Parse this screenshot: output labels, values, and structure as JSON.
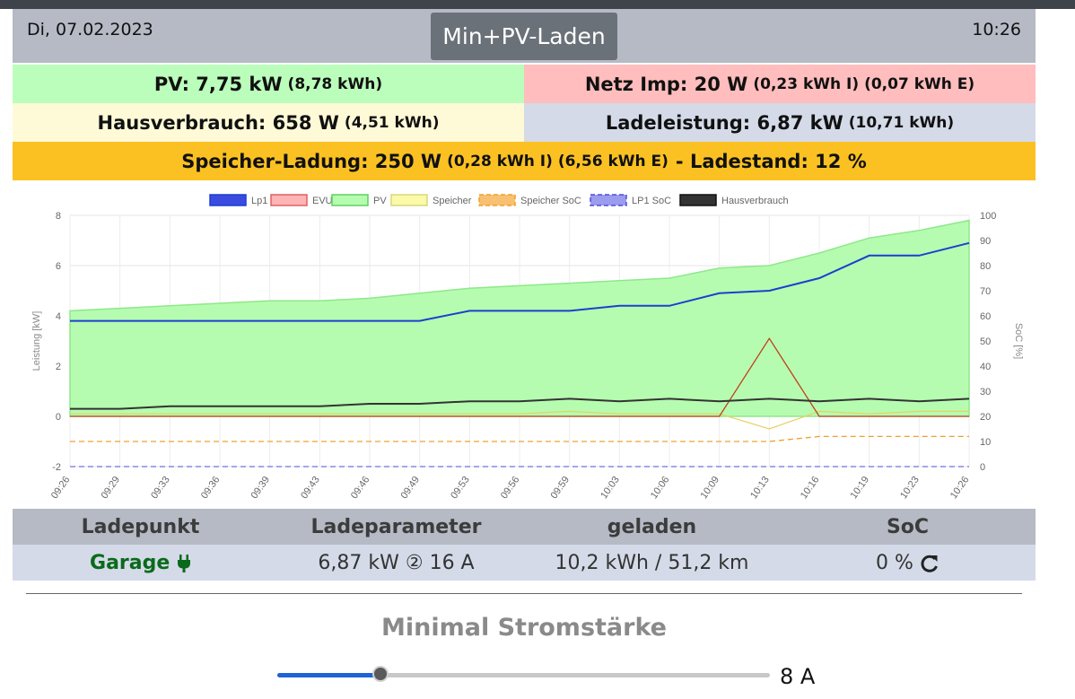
{
  "header": {
    "date": "Di, 07.02.2023",
    "time": "10:26",
    "mode_button": "Min+PV-Laden"
  },
  "summary": {
    "pv_label": "PV: 7,75 kW",
    "pv_energy": "(8,78 kWh)",
    "netz_label": "Netz Imp: 20 W",
    "netz_energy": "(0,23 kWh I) (0,07 kWh E)",
    "haus_label": "Hausverbrauch: 658 W",
    "haus_energy": "(4,51 kWh)",
    "lade_label": "Ladeleistung: 6,87 kW",
    "lade_energy": "(10,71 kWh)",
    "speicher_label": "Speicher-Ladung: 250 W",
    "speicher_energy": "(0,28 kWh I) (6,56 kWh E)",
    "ladestand_label": "- Ladestand: 12 %"
  },
  "colors": {
    "pv": "#bbfebb",
    "netz": "#ffbdbd",
    "haus": "#fefad7",
    "lade": "#d4dae8",
    "speicher": "#fbc122",
    "header": "#b5bac5"
  },
  "chart_data": {
    "type": "line",
    "ylabel": "Leistung [kW]",
    "y2label": "SoC [%]",
    "ylim": [
      -2,
      8
    ],
    "y2lim": [
      0,
      100
    ],
    "yticks": [
      "8",
      "6",
      "4",
      "2",
      "0",
      "-2"
    ],
    "y2ticks": [
      "100",
      "90",
      "80",
      "70",
      "60",
      "50",
      "40",
      "30",
      "20",
      "10",
      "0"
    ],
    "categories": [
      "09:26",
      "09:29",
      "09:33",
      "09:36",
      "09:39",
      "09:43",
      "09:46",
      "09:49",
      "09:53",
      "09:56",
      "09:59",
      "10:03",
      "10:06",
      "10:09",
      "10:13",
      "10:16",
      "10:19",
      "10:23",
      "10:26"
    ],
    "legend_position": "top",
    "grid": true,
    "series": [
      {
        "name": "Lp1",
        "values": [
          3.8,
          3.8,
          3.8,
          3.8,
          3.8,
          3.8,
          3.8,
          3.8,
          4.2,
          4.2,
          4.2,
          4.4,
          4.4,
          4.9,
          5.0,
          5.5,
          6.4,
          6.4,
          6.9
        ]
      },
      {
        "name": "EVU",
        "values": [
          0.0,
          0.0,
          0.0,
          0.0,
          0.0,
          0.0,
          0.0,
          0.0,
          0.0,
          0.0,
          0.0,
          0.0,
          0.0,
          0.0,
          3.1,
          0.0,
          0.0,
          0.0,
          0.0
        ]
      },
      {
        "name": "PV",
        "values": [
          4.2,
          4.3,
          4.4,
          4.5,
          4.6,
          4.6,
          4.7,
          4.9,
          5.1,
          5.2,
          5.3,
          5.4,
          5.5,
          5.9,
          6.0,
          6.5,
          7.1,
          7.4,
          7.8
        ]
      },
      {
        "name": "Speicher",
        "values": [
          0.1,
          0.1,
          0.1,
          0.1,
          0.1,
          0.1,
          0.1,
          0.1,
          0.1,
          0.1,
          0.2,
          0.1,
          0.1,
          0.1,
          -0.5,
          0.2,
          0.1,
          0.2,
          0.2
        ]
      },
      {
        "name": "Speicher SoC",
        "values": [
          10,
          10,
          10,
          10,
          10,
          10,
          10,
          10,
          10,
          10,
          10,
          10,
          10,
          10,
          10,
          12,
          12,
          12,
          12
        ]
      },
      {
        "name": "LP1 SoC",
        "values": [
          0,
          0,
          0,
          0,
          0,
          0,
          0,
          0,
          0,
          0,
          0,
          0,
          0,
          0,
          0,
          0,
          0,
          0,
          0
        ]
      },
      {
        "name": "Hausverbrauch",
        "values": [
          0.3,
          0.3,
          0.4,
          0.4,
          0.4,
          0.4,
          0.5,
          0.5,
          0.6,
          0.6,
          0.7,
          0.6,
          0.7,
          0.6,
          0.7,
          0.6,
          0.7,
          0.6,
          0.7
        ]
      }
    ],
    "series_colors": [
      "#1d3fd0",
      "#f08080",
      "#7ef07e",
      "#f0f0a0",
      "#f0a030",
      "#7070e0",
      "#333333"
    ]
  },
  "table": {
    "headers": [
      "Ladepunkt",
      "Ladeparameter",
      "geladen",
      "SoC"
    ],
    "row": {
      "ladepunkt": "Garage",
      "ladeparameter": "6,87 kW ② 16 A",
      "geladen": "10,2 kWh / 51,2 km",
      "soc": "0 %"
    }
  },
  "minimal": {
    "title": "Minimal Stromstärke",
    "value": "8 A",
    "slider_fraction": 0.21
  },
  "icons": {
    "plug": "plug-icon",
    "refresh": "refresh-icon"
  }
}
